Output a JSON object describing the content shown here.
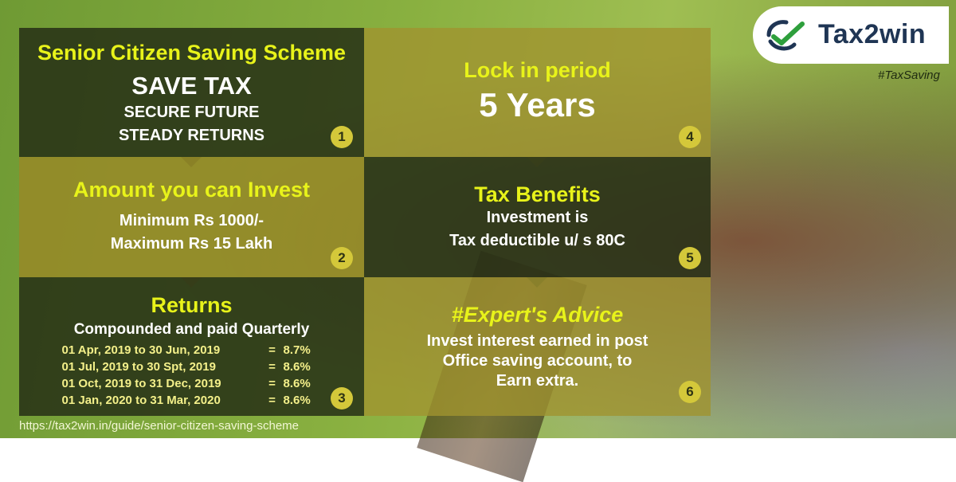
{
  "brand": {
    "name": "Tax2win",
    "hashtag": "#TaxSaving"
  },
  "url": "https://tax2win.in/guide/senior-citizen-saving-scheme",
  "cell1": {
    "title": "Senior Citizen Saving Scheme",
    "line1": "SAVE TAX",
    "line2": "SECURE FUTURE",
    "line3": "STEADY RETURNS",
    "num": "1"
  },
  "cell2": {
    "title": "Amount you can Invest",
    "line1": "Minimum Rs 1000/-",
    "line2": "Maximum Rs 15 Lakh",
    "num": "2"
  },
  "cell3": {
    "title": "Returns",
    "subtitle": "Compounded and paid Quarterly",
    "rows": [
      {
        "period": "01 Apr, 2019 to 30 Jun, 2019",
        "eq": "=",
        "rate": "8.7%"
      },
      {
        "period": "01 Jul, 2019 to 30 Spt, 2019",
        "eq": "=",
        "rate": "8.6%"
      },
      {
        "period": "01 Oct, 2019 to 31 Dec, 2019",
        "eq": "=",
        "rate": "8.6%"
      },
      {
        "period": "01 Jan, 2020 to 31 Mar, 2020",
        "eq": "=",
        "rate": "8.6%"
      }
    ],
    "num": "3"
  },
  "cell4": {
    "title": "Lock in period",
    "value": "5 Years",
    "num": "4"
  },
  "cell5": {
    "title": "Tax Benefits",
    "line1": "Investment is",
    "line2": "Tax deductible u/ s 80C",
    "num": "5"
  },
  "cell6": {
    "title": "#Expert's Advice",
    "line1": "Invest interest earned in post",
    "line2": "Office saving account, to",
    "line3": "Earn extra.",
    "num": "6"
  },
  "colors": {
    "accent": "#e8f31a",
    "dark_panel": "#263016",
    "olive_panel": "#968a28",
    "brand_navy": "#1f3554",
    "brand_green": "#2e9f3c"
  }
}
